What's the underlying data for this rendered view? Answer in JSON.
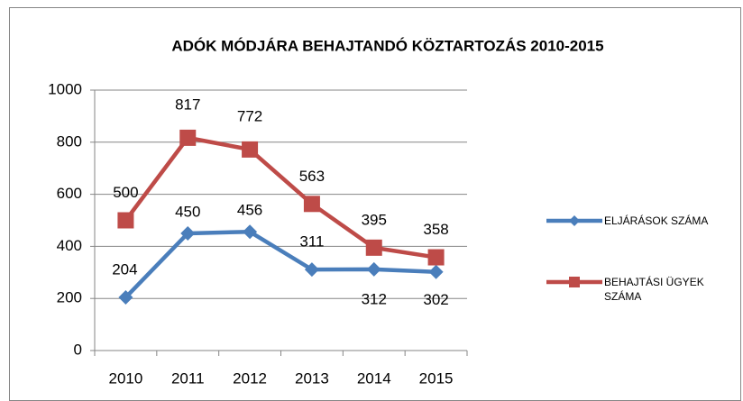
{
  "chart_data": {
    "type": "line",
    "title": "ADÓK MÓDJÁRA BEHAJTANDÓ KÖZTARTOZÁS 2010-2015",
    "categories": [
      "2010",
      "2011",
      "2012",
      "2013",
      "2014",
      "2015"
    ],
    "series": [
      {
        "name": "ELJÁRÁSOK SZÁMA",
        "color": "#4a7ebb",
        "marker": "diamond",
        "values": [
          204,
          450,
          456,
          311,
          312,
          302
        ]
      },
      {
        "name": "BEHAJTÁSI ÜGYEK SZÁMA",
        "color": "#be4b48",
        "marker": "square",
        "values": [
          500,
          817,
          772,
          563,
          395,
          358
        ]
      }
    ],
    "ylim": [
      0,
      1000
    ],
    "yticks": [
      0,
      200,
      400,
      600,
      800,
      1000
    ],
    "grid": true,
    "legend": "right"
  }
}
